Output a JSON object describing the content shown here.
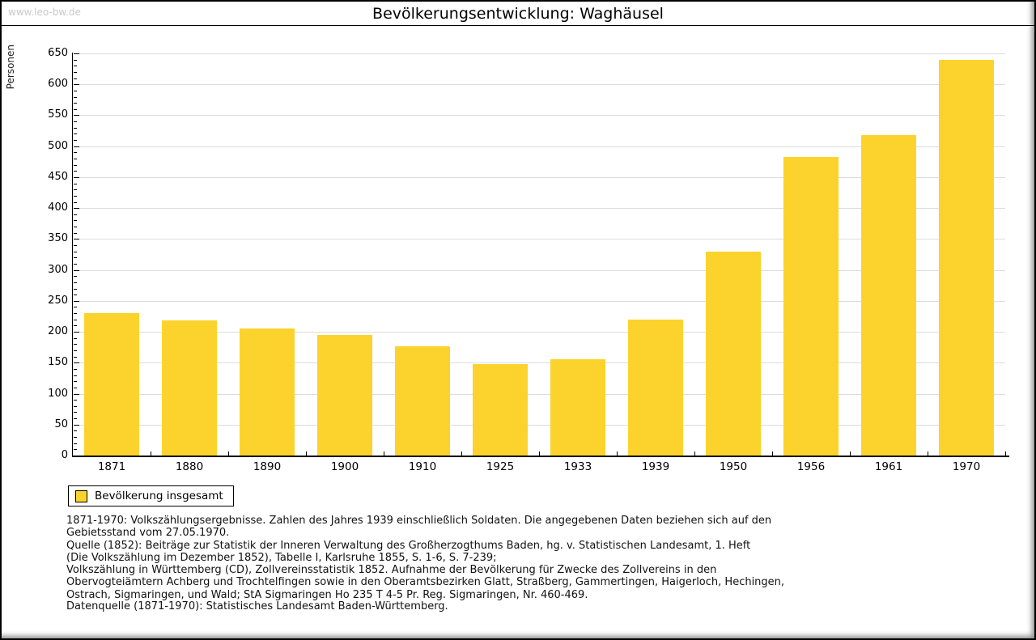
{
  "header": {
    "watermark": "www.leo-bw.de",
    "title": "Bevölkerungsentwicklung: Waghäusel"
  },
  "legend": {
    "label": "Bevölkerung insgesamt"
  },
  "chart_data": {
    "type": "bar",
    "title": "Bevölkerungsentwicklung: Waghäusel",
    "xlabel": "",
    "ylabel": "Personen",
    "categories": [
      "1871",
      "1880",
      "1890",
      "1900",
      "1910",
      "1925",
      "1933",
      "1939",
      "1950",
      "1956",
      "1961",
      "1970"
    ],
    "series": [
      {
        "name": "Bevölkerung insgesamt",
        "values": [
          230,
          219,
          205,
          195,
          177,
          148,
          155,
          220,
          330,
          483,
          518,
          640
        ]
      }
    ],
    "ylim": [
      0,
      650
    ],
    "y_major_step": 50,
    "y_minor_step": 10,
    "grid": "horizontal-majors",
    "legend_position": "bottom-left",
    "bar_color": "#FCD32D",
    "gridline_color": "#DCDCDC",
    "axis_color": "#000000"
  },
  "footer": {
    "notes": "1871-1970: Volkszählungsergebnisse. Zahlen des Jahres 1939 einschließlich Soldaten. Die angegebenen Daten beziehen sich auf den\nGebietsstand vom 27.05.1970.\nQuelle (1852): Beiträge zur Statistik der Inneren Verwaltung des Großherzogthums Baden, hg. v. Statistischen Landesamt, 1. Heft\n(Die Volkszählung im Dezember 1852), Tabelle I, Karlsruhe 1855, S. 1-6, S. 7-239;\nVolkszählung in Württemberg (CD), Zollvereinsstatistik 1852. Aufnahme der Bevölkerung für Zwecke des Zollvereins in den\nObervogteiämtern Achberg und Trochtelfingen sowie in den Oberamtsbezirken Glatt, Straßberg, Gammertingen, Haigerloch, Hechingen,\nOstrach, Sigmaringen, und Wald; StA Sigmaringen Ho 235 T 4-5 Pr. Reg. Sigmaringen, Nr. 460-469.",
    "datasource": "Datenquelle (1871-1970): Statistisches Landesamt Baden-Württemberg."
  }
}
